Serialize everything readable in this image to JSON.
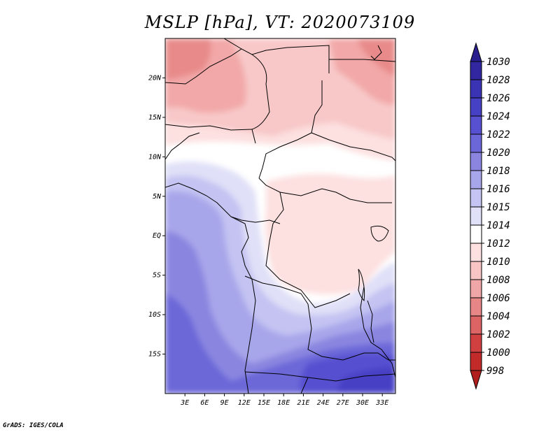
{
  "title": "MSLP [hPa], VT: 2020073109",
  "credit": "GrADS: IGES/COLA",
  "map": {
    "region": "Central Africa",
    "variable": "Mean sea level pressure",
    "units": "hPa",
    "lon_range": [
      0,
      35
    ],
    "lat_range": [
      -20,
      25
    ],
    "lat_labels": [
      "20N",
      "15N",
      "10N",
      "5N",
      "EQ",
      "5S",
      "10S",
      "15S"
    ],
    "lat_values": [
      20,
      15,
      10,
      5,
      0,
      -5,
      -10,
      -15
    ],
    "lon_labels": [
      "3E",
      "6E",
      "9E",
      "12E",
      "15E",
      "18E",
      "21E",
      "24E",
      "27E",
      "30E",
      "33E"
    ],
    "lon_values": [
      3,
      6,
      9,
      12,
      15,
      18,
      21,
      24,
      27,
      30,
      33
    ]
  },
  "colorbar": {
    "levels": [
      "1030",
      "1028",
      "1026",
      "1024",
      "1022",
      "1020",
      "1018",
      "1016",
      "1015",
      "1014",
      "1012",
      "1010",
      "1008",
      "1006",
      "1004",
      "1002",
      "1000",
      "998"
    ],
    "colors": [
      "#2a1f8f",
      "#3127a0",
      "#3a33b4",
      "#4640c4",
      "#5750d0",
      "#6c67d8",
      "#8a86e0",
      "#a8a6ea",
      "#c4c3f2",
      "#e0e0f8",
      "#ffffff",
      "#fde0e0",
      "#f8c4c4",
      "#f0a6a6",
      "#e68686",
      "#dc6464",
      "#d04040",
      "#c32a2a",
      "#b01e1e"
    ]
  }
}
